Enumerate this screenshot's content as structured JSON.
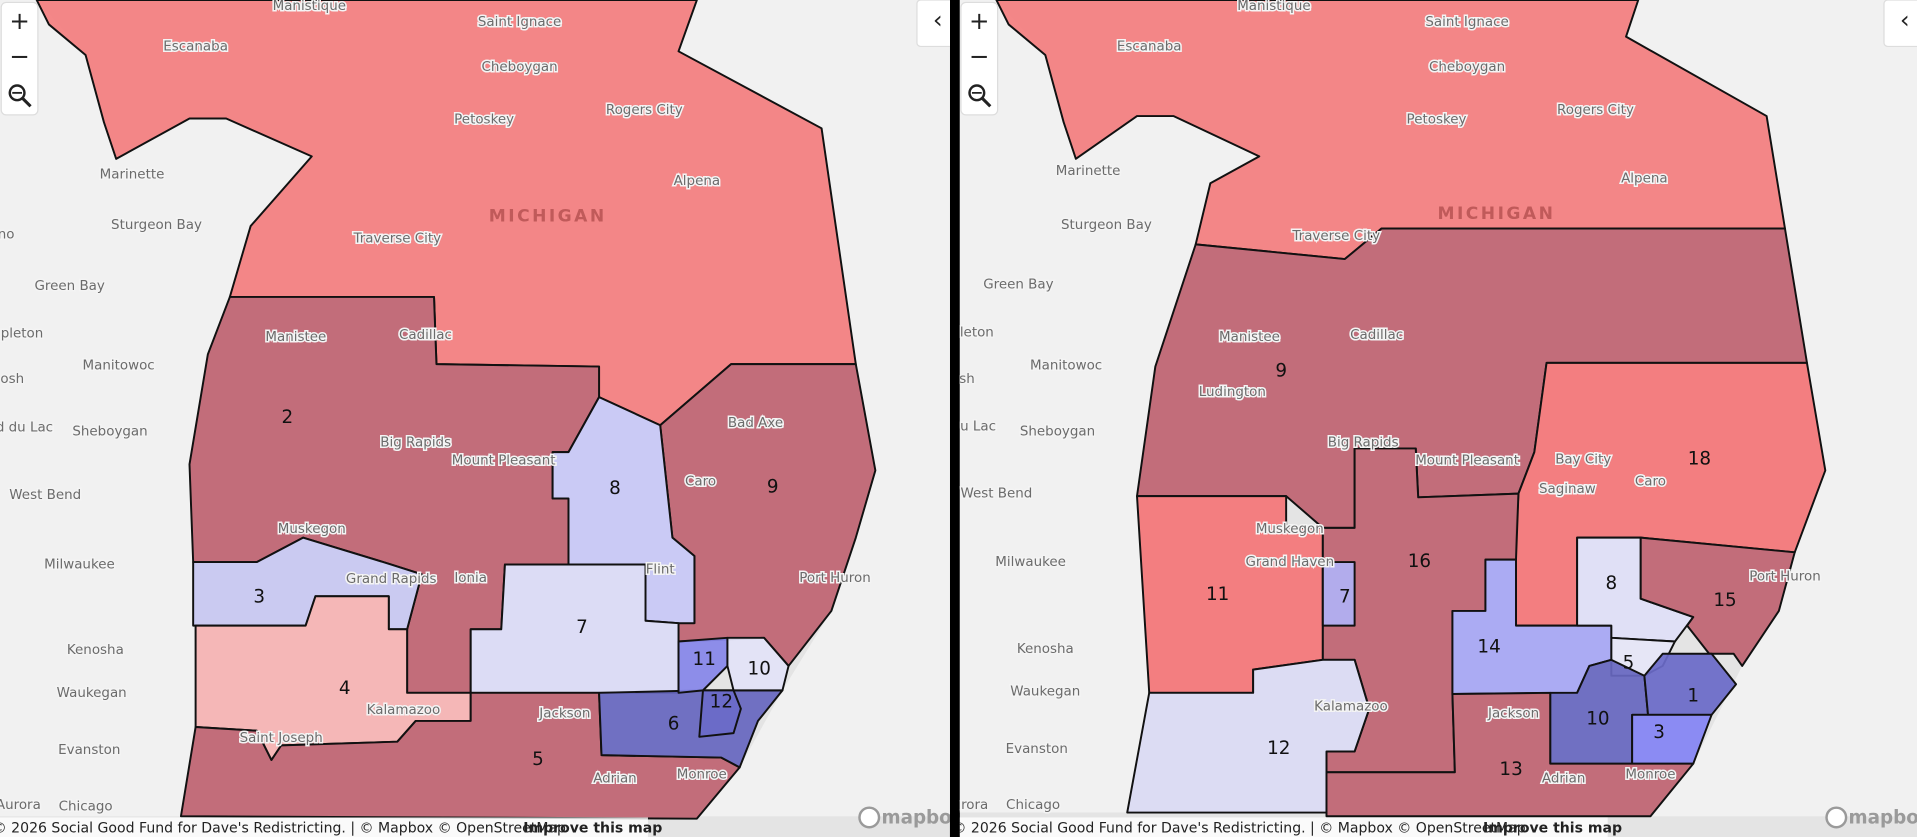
{
  "panels": [
    {
      "zoom_in": "+",
      "zoom_out": "−",
      "collapse": "‹",
      "places": [
        "Manistique",
        "Saint Ignace",
        "Escanaba",
        "Cheboygan",
        "Petoskey",
        "Rogers City",
        "Alpena",
        "Marinette",
        "Sturgeon Bay",
        "Traverse City",
        "MICHIGAN",
        "no",
        "Green Bay",
        "pleton",
        "Manistee",
        "Cadillac",
        "Manitowoc",
        "osh",
        "d du Lac",
        "Sheboygan",
        "Big Rapids",
        "Mount Pleasant",
        "Bad Axe",
        "Caro",
        "West Bend",
        "Muskegon",
        "Grand Rapids",
        "Ionia",
        "Flint",
        "Port Huron",
        "Milwaukee",
        "Kenosha",
        "Waukegan",
        "Jackson",
        "Kalamazoo",
        "Saint Joseph",
        "Adrian",
        "Monroe",
        "Evanston",
        "Aurora",
        "Chicago"
      ],
      "districts": [
        {
          "color": "#f47f80"
        },
        {
          "label": "2",
          "color": "#bf6472"
        },
        {
          "label": "9",
          "color": "#bf6472"
        },
        {
          "label": "8",
          "color": "#c8c8f6"
        },
        {
          "label": "3",
          "color": "#c8c8f2"
        },
        {
          "label": "7",
          "color": "#dcdcf6"
        },
        {
          "label": "4",
          "color": "#f6b4b4"
        },
        {
          "label": "5",
          "color": "#bf6472"
        },
        {
          "label": "6",
          "color": "#6767c0"
        },
        {
          "label": "11",
          "color": "#8787ea"
        },
        {
          "label": "10",
          "color": "#e3e3f8"
        },
        {
          "label": "12",
          "color": "#6b6bc8"
        }
      ],
      "attribution": "© 2026 Social Good Fund for Dave's Redistricting. | © Mapbox © OpenStreetMap",
      "improve_link": "Improve this map",
      "logo": "mapbox"
    },
    {
      "zoom_in": "+",
      "zoom_out": "−",
      "collapse": "‹",
      "places": [
        "Manistique",
        "Saint Ignace",
        "Escanaba",
        "Cheboygan",
        "Petoskey",
        "Rogers City",
        "Alpena",
        "Marinette",
        "Sturgeon Bay",
        "Traverse City",
        "MICHIGAN",
        "Green Bay",
        "leton",
        "Manistee",
        "Cadillac",
        "Manitowoc",
        "sh",
        "u Lac",
        "Sheboygan",
        "Ludington",
        "Big Rapids",
        "Mount Pleasant",
        "Bay City",
        "Caro",
        "Saginaw",
        "West Bend",
        "Muskegon",
        "Grand Haven",
        "Milwaukee",
        "Port Huron",
        "Kenosha",
        "Waukegan",
        "Kalamazoo",
        "Jackson",
        "Adrian",
        "Monroe",
        "Evanston",
        "Aurora",
        "Chicago"
      ],
      "districts": [
        {
          "color": "#f47f80"
        },
        {
          "label": "9",
          "color": "#bf6472"
        },
        {
          "label": "18",
          "color": "#f47678"
        },
        {
          "label": "11",
          "color": "#f47678"
        },
        {
          "label": "16",
          "color": "#bf6472"
        },
        {
          "label": "7",
          "color": "#b0b0f4"
        },
        {
          "label": "12",
          "color": "#dcdcf4"
        },
        {
          "label": "14",
          "color": "#a7a7f4"
        },
        {
          "label": "8",
          "color": "#e0e0f8"
        },
        {
          "label": "15",
          "color": "#bf6472"
        },
        {
          "label": "5",
          "color": "#e6e6f8"
        },
        {
          "label": "10",
          "color": "#6767c0"
        },
        {
          "label": "1",
          "color": "#6b6bc8"
        },
        {
          "label": "3",
          "color": "#8484f4"
        },
        {
          "label": "13",
          "color": "#bf6472"
        }
      ],
      "attribution": "© 2026 Social Good Fund for Dave's Redistricting. | © Mapbox © OpenStreetMap",
      "improve_link": "Improve this map",
      "logo": "mapbox"
    }
  ]
}
